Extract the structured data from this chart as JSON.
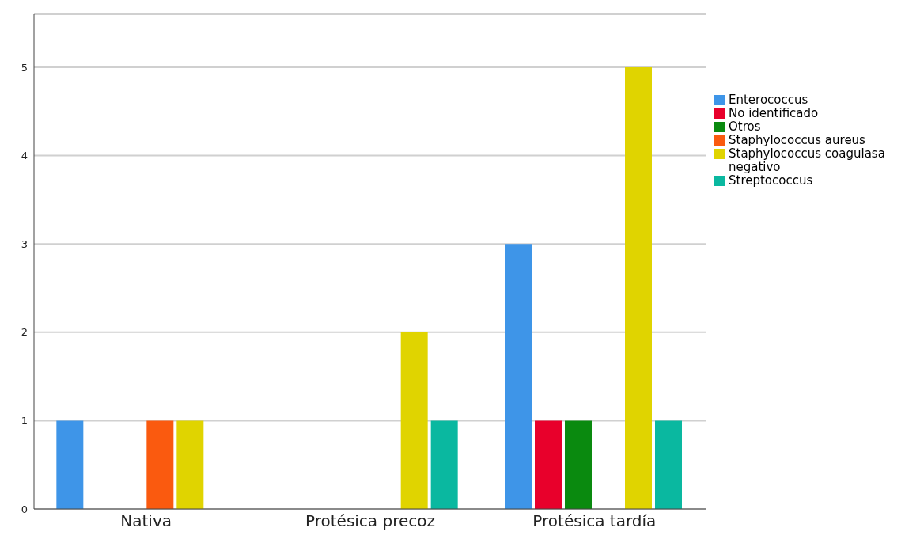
{
  "chart_data": {
    "type": "bar",
    "categories": [
      "Nativa",
      "Protésica precoz",
      "Protésica tardía"
    ],
    "series": [
      {
        "name": "Enterococcus",
        "color": "#3e95e8",
        "values": [
          1,
          0,
          3
        ]
      },
      {
        "name": "No identificado",
        "color": "#e8002b",
        "values": [
          0,
          0,
          1
        ]
      },
      {
        "name": "Otros",
        "color": "#0a8a0f",
        "values": [
          0,
          0,
          1
        ]
      },
      {
        "name": "Staphylococcus aureus",
        "color": "#fa5a0f",
        "values": [
          1,
          0,
          0
        ]
      },
      {
        "name": "Staphylococcus coagulasa negativo",
        "color": "#e0d400",
        "values": [
          1,
          2,
          5
        ]
      },
      {
        "name": "Streptococcus",
        "color": "#0ab8a0",
        "values": [
          0,
          1,
          1
        ]
      }
    ],
    "ylim": [
      0,
      5.6
    ],
    "yticks": [
      0,
      1,
      2,
      3,
      4,
      5
    ],
    "grid": "y",
    "legend": "top right"
  }
}
